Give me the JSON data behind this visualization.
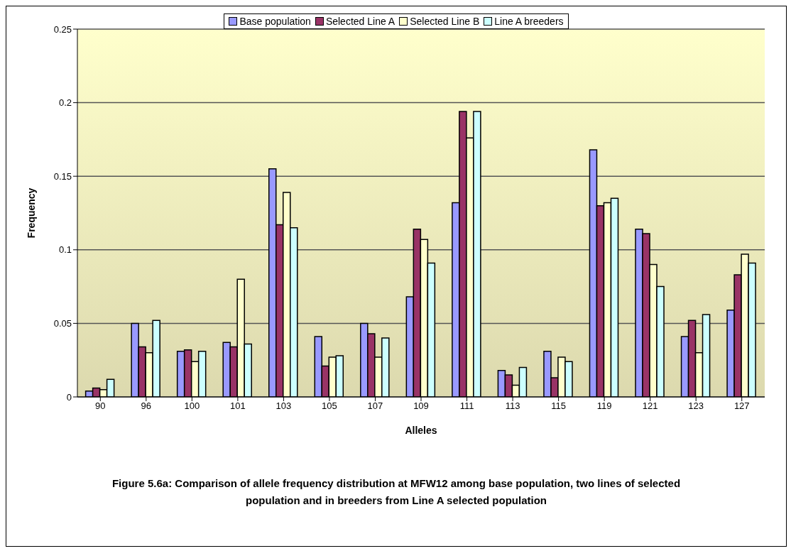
{
  "chart_data": {
    "type": "bar",
    "xlabel": "Alleles",
    "ylabel": "Frequency",
    "categories": [
      "90",
      "96",
      "100",
      "101",
      "103",
      "105",
      "107",
      "109",
      "111",
      "113",
      "115",
      "119",
      "121",
      "123",
      "127"
    ],
    "series": [
      {
        "name": "Base population",
        "color": "#9999ff",
        "values": [
          0.004,
          0.05,
          0.031,
          0.037,
          0.155,
          0.041,
          0.05,
          0.068,
          0.132,
          0.018,
          0.031,
          0.168,
          0.114,
          0.041,
          0.059
        ]
      },
      {
        "name": "Selected Line A",
        "color": "#993366",
        "values": [
          0.006,
          0.034,
          0.032,
          0.034,
          0.117,
          0.021,
          0.043,
          0.114,
          0.194,
          0.015,
          0.013,
          0.13,
          0.111,
          0.052,
          0.083
        ]
      },
      {
        "name": "Selected Line B",
        "color": "#ffffcc",
        "values": [
          0.005,
          0.03,
          0.024,
          0.08,
          0.139,
          0.027,
          0.027,
          0.107,
          0.176,
          0.008,
          0.027,
          0.132,
          0.09,
          0.03,
          0.097
        ]
      },
      {
        "name": "Line A  breeders",
        "color": "#ccffff",
        "values": [
          0.012,
          0.052,
          0.031,
          0.036,
          0.115,
          0.028,
          0.04,
          0.091,
          0.194,
          0.02,
          0.024,
          0.135,
          0.075,
          0.056,
          0.091
        ]
      }
    ],
    "ylim": [
      0,
      0.25
    ],
    "yticks": [
      0,
      0.05,
      0.1,
      0.15,
      0.2,
      0.25
    ],
    "grid": "y",
    "legend": "top",
    "annotations": [
      "Figure 5.6a: Comparison of allele frequency distribution at MFW12 among base population, two lines of selected population and in breeders from Line A selected population"
    ]
  }
}
